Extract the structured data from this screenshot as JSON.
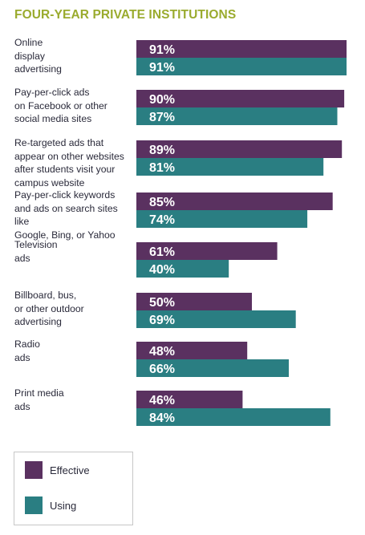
{
  "colors": {
    "title": "#9aab2e",
    "effective": "#5a3160",
    "using": "#2a7e82",
    "text": "#2a2a3a"
  },
  "chart_data": {
    "type": "bar",
    "orientation": "horizontal",
    "title": "FOUR-YEAR PRIVATE INSTITUTIONS",
    "categories": [
      "Online display advertising",
      "Pay-per-click ads on Facebook or other social media sites",
      "Re-targeted ads that appear on other websites after students visit your campus website",
      "Pay-per-click keywords and ads on search sites like Google, Bing, or Yahoo",
      "Television ads",
      "Billboard, bus, or other outdoor advertising",
      "Radio ads",
      "Print media ads"
    ],
    "category_lines": [
      [
        "Online",
        "display",
        "advertising"
      ],
      [
        "Pay-per-click ads",
        "on Facebook or other",
        "social media sites"
      ],
      [
        "Re-targeted ads that",
        "appear on other websites",
        "after students visit your",
        "campus website"
      ],
      [
        "Pay-per-click keywords",
        "and ads on search sites like",
        "Google, Bing, or Yahoo"
      ],
      [
        "Television",
        "ads"
      ],
      [
        "Billboard, bus,",
        "or other outdoor",
        "advertising"
      ],
      [
        "Radio",
        "ads"
      ],
      [
        "Print media",
        "ads"
      ]
    ],
    "series": [
      {
        "name": "Effective",
        "values": [
          91,
          90,
          89,
          85,
          61,
          50,
          48,
          46
        ],
        "labels": [
          "91%",
          "90%",
          "89%",
          "85%",
          "61%",
          "50%",
          "48%",
          "46%"
        ]
      },
      {
        "name": "Using",
        "values": [
          91,
          87,
          81,
          74,
          40,
          69,
          66,
          84
        ],
        "labels": [
          "91%",
          "87%",
          "81%",
          "74%",
          "40%",
          "69%",
          "66%",
          "84%"
        ]
      }
    ],
    "xlim": [
      0,
      100
    ],
    "legend_position": "bottom-left",
    "grid": false
  }
}
